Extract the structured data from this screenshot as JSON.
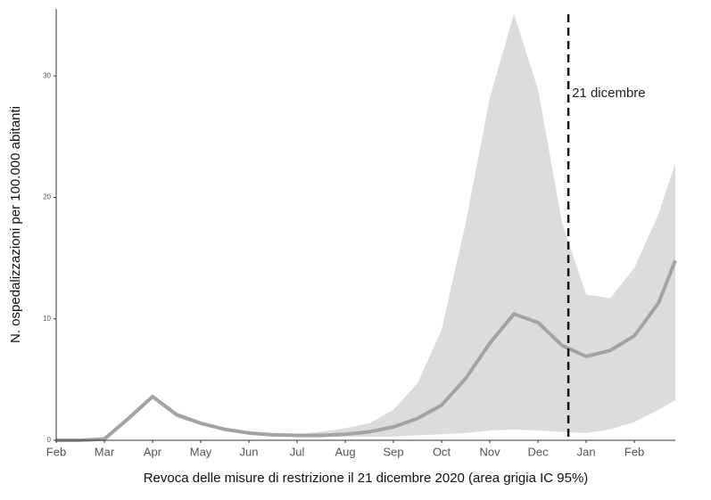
{
  "chart_data": {
    "type": "line",
    "x_label": "Revoca delle misure di restrizione il 21 dicembre 2020 (area grigia IC 95%)",
    "y_label": "N. ospedalizzazioni per 100.000 abitanti",
    "x": [
      0,
      0.5,
      1,
      1.5,
      2,
      2.5,
      3,
      3.5,
      4,
      4.5,
      5,
      5.5,
      6,
      6.5,
      7,
      7.5,
      8,
      8.5,
      9,
      9.5,
      10,
      10.5,
      11,
      11.5,
      12,
      12.5,
      12.85
    ],
    "values": [
      0,
      0,
      0.1,
      1.8,
      3.6,
      2.1,
      1.4,
      0.9,
      0.6,
      0.45,
      0.4,
      0.4,
      0.5,
      0.7,
      1.1,
      1.8,
      2.9,
      5.1,
      8.0,
      10.4,
      9.7,
      7.8,
      6.9,
      7.4,
      8.6,
      11.3,
      14.8
    ],
    "ci_lower": [
      0,
      0,
      0.05,
      1.6,
      3.4,
      1.9,
      1.25,
      0.8,
      0.5,
      0.35,
      0.3,
      0.3,
      0.3,
      0.3,
      0.3,
      0.4,
      0.5,
      0.6,
      0.8,
      0.9,
      0.8,
      0.7,
      0.6,
      0.9,
      1.5,
      2.5,
      3.3
    ],
    "ci_upper": [
      0,
      0,
      0.15,
      2.0,
      3.8,
      2.3,
      1.55,
      1.0,
      0.7,
      0.55,
      0.5,
      0.7,
      1.0,
      1.4,
      2.5,
      4.7,
      9.1,
      17.9,
      28.2,
      35.1,
      28.9,
      17.9,
      12.0,
      11.7,
      14.2,
      18.6,
      22.8
    ],
    "color": "#a3a3a3",
    "band_color": "#dcdcdc",
    "xlim": [
      0,
      12.85
    ],
    "ylim": [
      0,
      35.3
    ],
    "xticks": [
      {
        "value": 0,
        "label": "Feb"
      },
      {
        "value": 1,
        "label": "Mar"
      },
      {
        "value": 2,
        "label": "Apr"
      },
      {
        "value": 3,
        "label": "May"
      },
      {
        "value": 4,
        "label": "Jun"
      },
      {
        "value": 5,
        "label": "Jul"
      },
      {
        "value": 6,
        "label": "Aug"
      },
      {
        "value": 7,
        "label": "Sep"
      },
      {
        "value": 8,
        "label": "Oct"
      },
      {
        "value": 9,
        "label": "Nov"
      },
      {
        "value": 10,
        "label": "Dec"
      },
      {
        "value": 11,
        "label": "Jan"
      },
      {
        "value": 12,
        "label": "Feb"
      }
    ],
    "yticks": [
      0,
      10,
      20,
      30
    ],
    "vline": {
      "x": 10.63,
      "label": "21 dicembre"
    }
  }
}
